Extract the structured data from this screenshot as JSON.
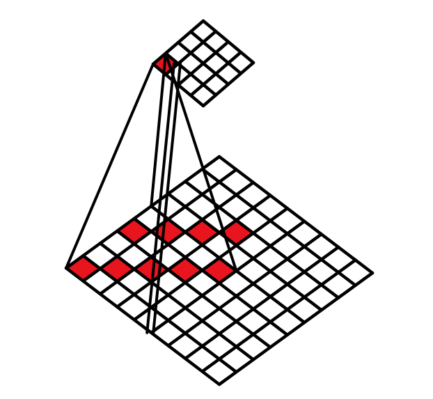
{
  "diagram": {
    "input_grid": {
      "size": 9,
      "highlighted_cells": [
        [
          0,
          0
        ],
        [
          1,
          1
        ],
        [
          2,
          2
        ],
        [
          3,
          3
        ],
        [
          4,
          4
        ],
        [
          3,
          0
        ],
        [
          4,
          1
        ],
        [
          5,
          2
        ],
        [
          6,
          3
        ]
      ]
    },
    "output_grid": {
      "size": 4,
      "highlighted_cells": [
        [
          0,
          0
        ]
      ]
    },
    "receptive_field": {
      "input_span": 5
    },
    "colors": {
      "line": "#000000",
      "highlight": "#e8141e",
      "background": "#ffffff"
    }
  }
}
